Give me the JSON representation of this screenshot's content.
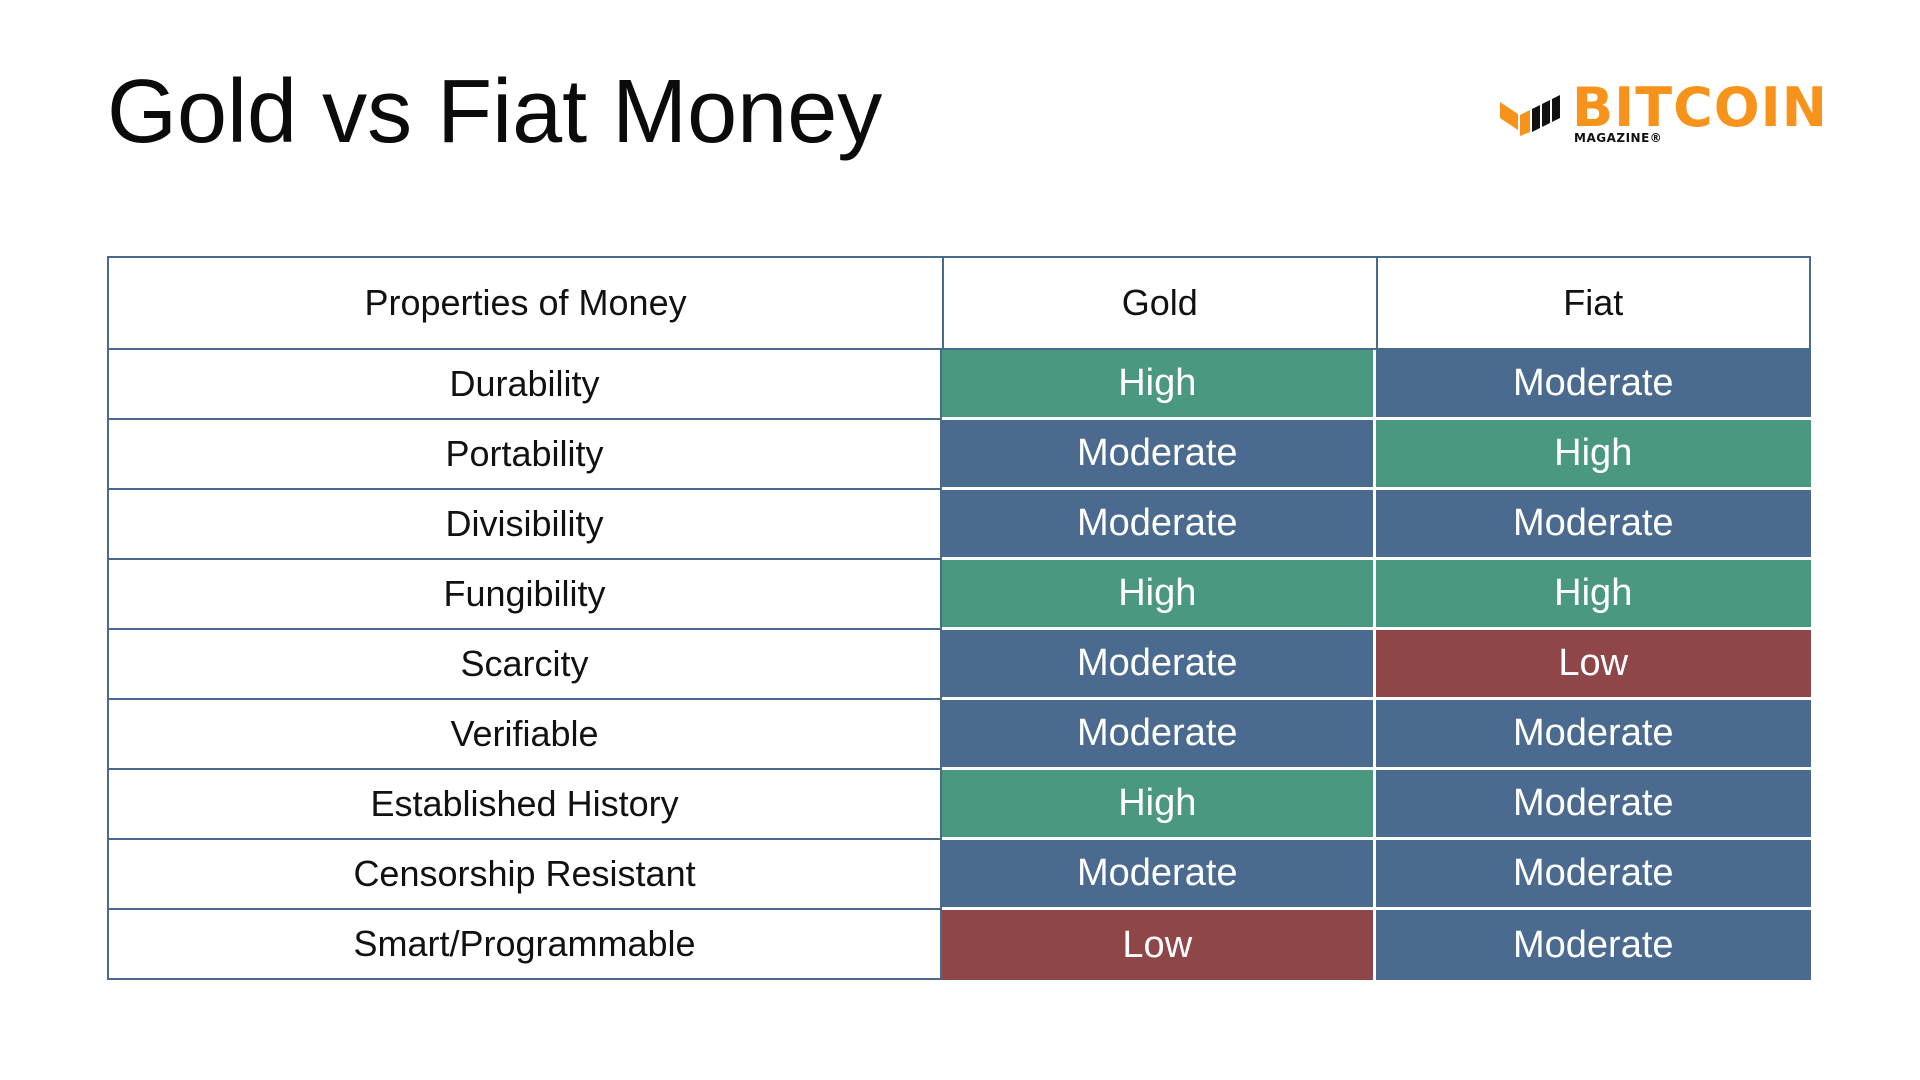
{
  "title": "Gold vs Fiat Money",
  "logo": {
    "word": "BITCOIN",
    "sub": "MAGAZINE®",
    "icon": "bitcoin-magazine-logo-mark"
  },
  "colors": {
    "High": "#4a9880",
    "Moderate": "#4a6a8f",
    "Low": "#8f4649",
    "border": "#4a6a8c",
    "brand": "#f7931a"
  },
  "chart_data": {
    "type": "table",
    "columns": [
      "Properties of Money",
      "Gold",
      "Fiat"
    ],
    "rows": [
      {
        "property": "Durability",
        "gold": "High",
        "fiat": "Moderate"
      },
      {
        "property": "Portability",
        "gold": "Moderate",
        "fiat": "High"
      },
      {
        "property": "Divisibility",
        "gold": "Moderate",
        "fiat": "Moderate"
      },
      {
        "property": "Fungibility",
        "gold": "High",
        "fiat": "High"
      },
      {
        "property": "Scarcity",
        "gold": "Moderate",
        "fiat": "Low"
      },
      {
        "property": "Verifiable",
        "gold": "Moderate",
        "fiat": "Moderate"
      },
      {
        "property": "Established History",
        "gold": "High",
        "fiat": "Moderate"
      },
      {
        "property": "Censorship Resistant",
        "gold": "Moderate",
        "fiat": "Moderate"
      },
      {
        "property": "Smart/Programmable",
        "gold": "Low",
        "fiat": "Moderate"
      }
    ]
  }
}
